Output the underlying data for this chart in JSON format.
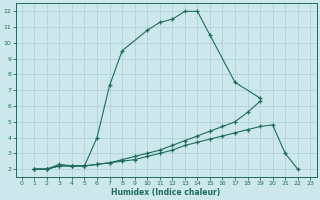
{
  "xlabel": "Humidex (Indice chaleur)",
  "background_color": "#cce8ed",
  "grid_color": "#aacdd4",
  "line_color": "#1e6b5a",
  "xlim": [
    -0.5,
    23.5
  ],
  "ylim": [
    1.5,
    12.5
  ],
  "xticks": [
    0,
    1,
    2,
    3,
    4,
    5,
    6,
    7,
    8,
    9,
    10,
    11,
    12,
    13,
    14,
    15,
    16,
    17,
    18,
    19,
    20,
    21,
    22,
    23
  ],
  "yticks": [
    2,
    3,
    4,
    5,
    6,
    7,
    8,
    9,
    10,
    11,
    12
  ],
  "curve1_x": [
    1,
    2,
    3,
    4,
    5,
    6,
    7,
    8,
    10,
    11,
    12,
    13,
    14,
    15,
    17,
    19
  ],
  "curve1_y": [
    2,
    2,
    2.3,
    2.2,
    2.2,
    4.0,
    7.3,
    9.5,
    10.8,
    11.3,
    11.5,
    12.0,
    12.0,
    10.5,
    7.5,
    6.5
  ],
  "curve2_x": [
    1,
    2,
    3,
    4,
    5,
    6,
    7,
    8,
    9,
    10,
    11,
    12,
    13,
    14,
    15,
    16,
    17,
    18,
    19
  ],
  "curve2_y": [
    2,
    2,
    2.2,
    2.2,
    2.2,
    2.3,
    2.4,
    2.6,
    2.8,
    3.0,
    3.2,
    3.5,
    3.8,
    4.1,
    4.4,
    4.7,
    5.0,
    5.6,
    6.3
  ],
  "curve3_x": [
    1,
    2,
    3,
    4,
    5,
    6,
    7,
    8,
    9,
    10,
    11,
    12,
    13,
    14,
    15,
    16,
    17,
    18,
    19,
    20,
    21,
    22
  ],
  "curve3_y": [
    2,
    2,
    2.2,
    2.2,
    2.2,
    2.3,
    2.4,
    2.5,
    2.6,
    2.8,
    3.0,
    3.2,
    3.5,
    3.7,
    3.9,
    4.1,
    4.3,
    4.5,
    4.7,
    4.8,
    3.0,
    2.0
  ]
}
